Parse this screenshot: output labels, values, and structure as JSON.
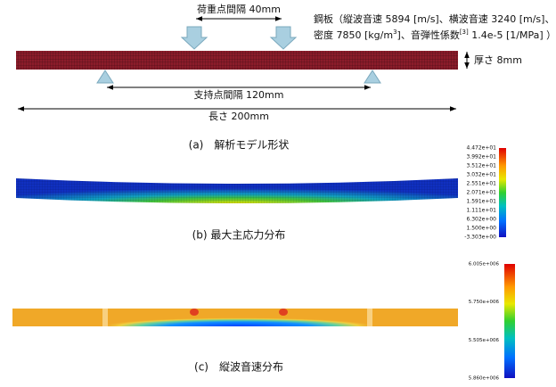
{
  "figure_a": {
    "load_spacing": "荷重点間隔 40mm",
    "material_line1": "鋼板（縦波音速 5894 [m/s]、横波音速 3240 [m/s]、",
    "material_line2": {
      "part1": "密度 7850 [kg/m",
      "sup1": "3",
      "part2": "]、音弾性係数",
      "sup2": "[3]",
      "part3": " 1.4e-5 [1/MPa] ）"
    },
    "thickness": "厚さ 8mm",
    "support_spacing": "支持点間隔 120mm",
    "length": "長さ 200mm",
    "caption": "(a)　解析モデル形状"
  },
  "figure_b": {
    "caption": "(b) 最大主応力分布",
    "colorbar_labels": [
      "4.472e+01",
      "3.992e+01",
      "3.512e+01",
      "3.032e+01",
      "2.551e+01",
      "2.071e+01",
      "1.591e+01",
      "1.111e+01",
      "6.302e+00",
      "1.500e+00",
      "-3.303e+00"
    ]
  },
  "figure_c": {
    "caption": "(c)　縦波音速分布",
    "colorbar_labels": [
      "6.005e+006",
      "5.750e+006",
      "5.505e+006",
      "5.860e+006"
    ]
  }
}
